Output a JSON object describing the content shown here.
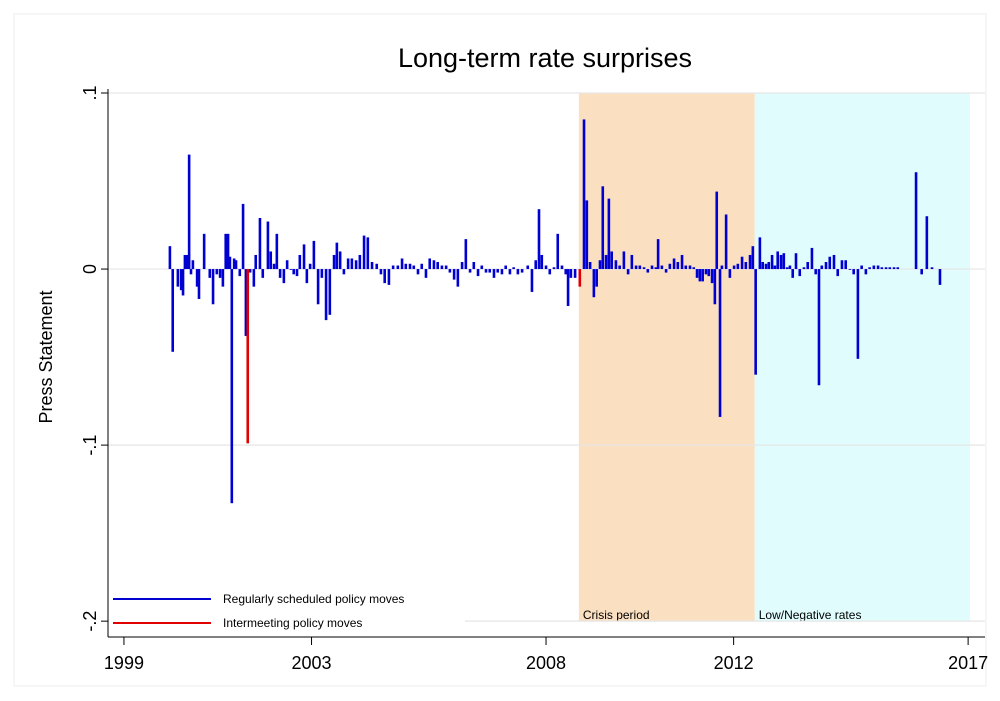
{
  "chart_data": {
    "type": "spike",
    "title": "Long-term rate surprises",
    "y_label": "Press Statement",
    "xlim": [
      1998.66,
      2017.36
    ],
    "xticks": [
      1999,
      2003,
      2008,
      2012,
      2017
    ],
    "ylim": [
      -0.209,
      0.1
    ],
    "yticks": [
      {
        "value": 0.1,
        "label": ".1"
      },
      0,
      {
        "value": -0.1,
        "label": "-.1"
      },
      {
        "value": -0.2,
        "label": "-.2"
      }
    ],
    "grid": true,
    "legend": "lower left",
    "regions": [
      {
        "label": "Crisis period",
        "start": 2008.7,
        "end": 2012.45,
        "color": "#fbdfc1"
      },
      {
        "label": "Low/Negative rates",
        "start": 2012.45,
        "end": 2017.04,
        "color": "#e0fcfc"
      }
    ],
    "series": [
      {
        "name": "Regularly scheduled policy moves",
        "color": "#0000d0",
        "x": [
          1999.98,
          2000.04,
          2000.15,
          2000.22,
          2000.26,
          2000.3,
          2000.34,
          2000.39,
          2000.43,
          2000.47,
          2000.56,
          2000.6,
          2000.71,
          2000.83,
          2000.9,
          2000.98,
          2001.05,
          2001.11,
          2001.17,
          2001.22,
          2001.26,
          2001.3,
          2001.35,
          2001.39,
          2001.47,
          2001.54,
          2001.6,
          2001.69,
          2001.77,
          2001.81,
          2001.9,
          2001.96,
          2002.07,
          2002.13,
          2002.2,
          2002.26,
          2002.33,
          2002.41,
          2002.48,
          2002.56,
          2002.62,
          2002.69,
          2002.75,
          2002.84,
          2002.9,
          2002.97,
          2003.05,
          2003.14,
          2003.22,
          2003.31,
          2003.39,
          2003.48,
          2003.54,
          2003.61,
          2003.69,
          2003.78,
          2003.86,
          2003.95,
          2004.03,
          2004.12,
          2004.2,
          2004.29,
          2004.39,
          2004.48,
          2004.56,
          2004.65,
          2004.74,
          2004.84,
          2004.93,
          2005.01,
          2005.1,
          2005.18,
          2005.27,
          2005.35,
          2005.44,
          2005.52,
          2005.61,
          2005.69,
          2005.78,
          2005.87,
          2005.95,
          2006.04,
          2006.12,
          2006.21,
          2006.29,
          2006.38,
          2006.46,
          2006.55,
          2006.63,
          2006.72,
          2006.8,
          2006.89,
          2006.97,
          2007.06,
          2007.14,
          2007.23,
          2007.31,
          2007.4,
          2007.49,
          2007.61,
          2007.7,
          2007.78,
          2007.85,
          2007.91,
          2008.0,
          2008.08,
          2008.17,
          2008.25,
          2008.34,
          2008.42,
          2008.47,
          2008.53,
          2008.62,
          2008.81,
          2008.87,
          2008.94,
          2009.02,
          2009.08,
          2009.15,
          2009.21,
          2009.28,
          2009.34,
          2009.4,
          2009.49,
          2009.57,
          2009.66,
          2009.75,
          2009.83,
          2009.92,
          2010.0,
          2010.09,
          2010.17,
          2010.26,
          2010.34,
          2010.39,
          2010.47,
          2010.56,
          2010.64,
          2010.73,
          2010.81,
          2010.9,
          2010.98,
          2011.07,
          2011.15,
          2011.22,
          2011.28,
          2011.34,
          2011.41,
          2011.47,
          2011.54,
          2011.6,
          2011.64,
          2011.71,
          2011.75,
          2011.84,
          2011.92,
          2012.01,
          2012.09,
          2012.18,
          2012.26,
          2012.35,
          2012.41,
          2012.47,
          2012.56,
          2012.62,
          2012.69,
          2012.75,
          2012.82,
          2012.88,
          2012.94,
          2013.01,
          2013.07,
          2013.14,
          2013.2,
          2013.26,
          2013.33,
          2013.41,
          2013.5,
          2013.58,
          2013.67,
          2013.75,
          2013.82,
          2013.88,
          2013.97,
          2014.05,
          2014.14,
          2014.22,
          2014.31,
          2014.39,
          2014.48,
          2014.56,
          2014.65,
          2014.73,
          2014.82,
          2014.9,
          2014.99,
          2015.08,
          2015.16,
          2015.25,
          2015.33,
          2015.42,
          2015.5,
          2015.89,
          2016.01,
          2016.12,
          2016.23,
          2016.4
        ],
        "values": [
          0.013,
          -0.047,
          -0.01,
          -0.012,
          -0.015,
          0.008,
          0.008,
          0.065,
          -0.003,
          0.005,
          -0.01,
          -0.017,
          0.02,
          -0.005,
          -0.02,
          -0.003,
          -0.005,
          -0.01,
          0.02,
          0.02,
          0.007,
          -0.133,
          0.006,
          0.005,
          -0.004,
          0.037,
          -0.038,
          -0.002,
          -0.01,
          0.008,
          0.029,
          -0.005,
          0.027,
          0.01,
          0.003,
          0.02,
          -0.005,
          -0.008,
          0.005,
          0.0,
          -0.003,
          -0.004,
          0.008,
          0.014,
          -0.008,
          0.003,
          0.016,
          -0.02,
          -0.005,
          -0.029,
          -0.026,
          0.008,
          0.015,
          0.01,
          -0.003,
          0.006,
          0.006,
          0.005,
          0.008,
          0.019,
          0.018,
          0.004,
          0.003,
          -0.003,
          -0.008,
          -0.009,
          0.002,
          0.002,
          0.006,
          0.003,
          0.003,
          0.002,
          -0.003,
          0.003,
          -0.005,
          0.006,
          0.005,
          0.004,
          0.002,
          0.002,
          -0.002,
          -0.006,
          -0.01,
          0.004,
          0.017,
          -0.002,
          0.004,
          -0.004,
          0.002,
          -0.002,
          -0.002,
          -0.005,
          -0.002,
          -0.003,
          0.002,
          -0.003,
          0.001,
          -0.003,
          -0.002,
          0.002,
          -0.013,
          0.005,
          0.034,
          0.008,
          0.002,
          -0.003,
          0.001,
          0.02,
          0.002,
          -0.003,
          -0.021,
          -0.005,
          -0.005,
          0.085,
          0.039,
          0.004,
          -0.016,
          -0.01,
          0.005,
          0.047,
          0.008,
          0.04,
          0.01,
          0.005,
          0.002,
          0.01,
          -0.003,
          0.008,
          0.002,
          0.002,
          0.001,
          -0.002,
          0.002,
          0.001,
          0.017,
          0.002,
          -0.002,
          0.003,
          0.006,
          0.004,
          0.008,
          0.002,
          0.002,
          0.001,
          -0.005,
          -0.007,
          -0.007,
          -0.003,
          -0.004,
          -0.008,
          -0.02,
          0.044,
          -0.084,
          0.002,
          0.031,
          -0.005,
          0.002,
          0.003,
          0.007,
          0.004,
          0.008,
          0.013,
          -0.06,
          0.018,
          0.004,
          0.003,
          0.004,
          0.008,
          0.002,
          0.01,
          0.008,
          0.009,
          0.001,
          0.002,
          -0.005,
          0.009,
          -0.004,
          0.001,
          0.004,
          0.012,
          -0.003,
          -0.066,
          0.002,
          0.004,
          0.007,
          0.008,
          -0.004,
          0.005,
          0.005,
          0,
          -0.003,
          -0.051,
          0.002,
          -0.003,
          0.001,
          0.002,
          0.002,
          0.001,
          0.001,
          0.001,
          0.001,
          0.001,
          0.055,
          -0.003,
          0.03,
          0.001,
          -0.009
        ]
      },
      {
        "name": "Intermeeting policy moves",
        "color": "#e00000",
        "x": [
          2001.64,
          2008.72
        ],
        "values": [
          -0.099,
          -0.01
        ]
      }
    ]
  }
}
